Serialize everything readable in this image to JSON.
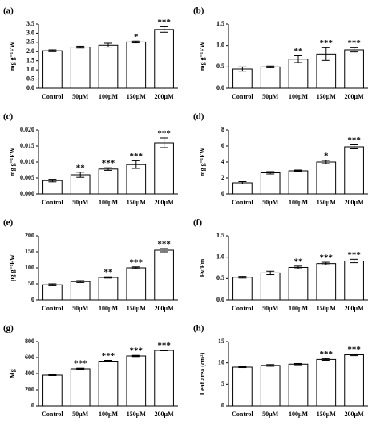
{
  "chart_data": [
    {
      "type": "bar",
      "panel": "(a)",
      "ylabel": "mg g⁻¹FW",
      "categories": [
        "Control",
        "50μM",
        "100μM",
        "150μM",
        "200μM"
      ],
      "values": [
        2.05,
        2.25,
        2.35,
        2.52,
        3.2
      ],
      "errors": [
        0.05,
        0.05,
        0.1,
        0.05,
        0.15
      ],
      "annotations": [
        null,
        null,
        null,
        "*",
        "***"
      ],
      "color": "#ffffff",
      "ylim": [
        0,
        3.5
      ],
      "yticks": [
        {
          "value": 0,
          "label": "0.0"
        },
        {
          "value": 0.5,
          "label": "0.5"
        },
        {
          "value": 1,
          "label": "1.0"
        },
        {
          "value": 1.5,
          "label": "1.5"
        },
        {
          "value": 2,
          "label": "2.0"
        },
        {
          "value": 2.5,
          "label": "2.5"
        },
        {
          "value": 3,
          "label": "3.0"
        },
        {
          "value": 3.5,
          "label": "3.5"
        }
      ]
    },
    {
      "type": "bar",
      "panel": "(b)",
      "ylabel": "mg g⁻¹FW",
      "categories": [
        "Control",
        "50μM",
        "100μM",
        "150μM",
        "200μM"
      ],
      "values": [
        0.45,
        0.5,
        0.68,
        0.8,
        0.9
      ],
      "errors": [
        0.05,
        0.02,
        0.08,
        0.15,
        0.05
      ],
      "annotations": [
        null,
        null,
        "**",
        "***",
        "***"
      ],
      "color": "#ffffff",
      "ylim": [
        0,
        1.5
      ],
      "yticks": [
        {
          "value": 0,
          "label": "0.0"
        },
        {
          "value": 0.5,
          "label": "0.5"
        },
        {
          "value": 1,
          "label": "1.0"
        },
        {
          "value": 1.5,
          "label": "1.5"
        }
      ]
    },
    {
      "type": "bar",
      "panel": "(c)",
      "ylabel": "mg g⁻¹FW",
      "categories": [
        "Control",
        "50μM",
        "100μM",
        "150μM",
        "200μM"
      ],
      "values": [
        0.0042,
        0.006,
        0.0078,
        0.0092,
        0.016
      ],
      "errors": [
        0.0004,
        0.0008,
        0.0004,
        0.0012,
        0.0015
      ],
      "annotations": [
        null,
        "**",
        "***",
        "***",
        "***"
      ],
      "color": "#ffffff",
      "ylim": [
        0,
        0.02
      ],
      "yticks": [
        {
          "value": 0,
          "label": "0.000"
        },
        {
          "value": 0.005,
          "label": "0.005"
        },
        {
          "value": 0.01,
          "label": "0.010"
        },
        {
          "value": 0.015,
          "label": "0.015"
        },
        {
          "value": 0.02,
          "label": "0.020"
        }
      ]
    },
    {
      "type": "bar",
      "panel": "(d)",
      "ylabel": "mg g⁻¹FW",
      "categories": [
        "Control",
        "50μM",
        "100μM",
        "150μM",
        "200μM"
      ],
      "values": [
        1.4,
        2.65,
        2.9,
        4.0,
        5.9
      ],
      "errors": [
        0.15,
        0.15,
        0.1,
        0.2,
        0.25
      ],
      "annotations": [
        null,
        null,
        null,
        "*",
        "***"
      ],
      "color": "#ffffff",
      "ylim": [
        0,
        8
      ],
      "yticks": [
        0,
        2,
        4,
        6,
        8
      ]
    },
    {
      "type": "bar",
      "panel": "(e)",
      "ylabel": "μg g⁻¹FW",
      "categories": [
        "Control",
        "50μM",
        "100μM",
        "150μM",
        "200μM"
      ],
      "values": [
        47,
        57,
        70,
        100,
        155
      ],
      "errors": [
        3,
        3,
        2,
        3,
        5
      ],
      "annotations": [
        null,
        null,
        "**",
        "***",
        "***"
      ],
      "color": "#ffffff",
      "ylim": [
        0,
        200
      ],
      "yticks": [
        0,
        50,
        100,
        150,
        200
      ]
    },
    {
      "type": "bar",
      "panel": "(f)",
      "ylabel": "Fv/Fm",
      "categories": [
        "Control",
        "50μM",
        "100μM",
        "150μM",
        "200μM"
      ],
      "values": [
        0.53,
        0.63,
        0.76,
        0.85,
        0.91
      ],
      "errors": [
        0.02,
        0.04,
        0.03,
        0.03,
        0.04
      ],
      "annotations": [
        null,
        null,
        "**",
        "***",
        "***"
      ],
      "color": "#ffffff",
      "ylim": [
        0,
        1.5
      ],
      "yticks": [
        {
          "value": 0,
          "label": "0.0"
        },
        {
          "value": 0.5,
          "label": "0.5"
        },
        {
          "value": 1,
          "label": "1.0"
        },
        {
          "value": 1.5,
          "label": "1.5"
        }
      ]
    },
    {
      "type": "bar",
      "panel": "(g)",
      "ylabel": "Mg",
      "categories": [
        "Control",
        "50μM",
        "100μM",
        "150μM",
        "200μM"
      ],
      "values": [
        380,
        460,
        555,
        620,
        690
      ],
      "errors": [
        5,
        8,
        10,
        8,
        5
      ],
      "annotations": [
        null,
        "***",
        "***",
        "***",
        "***"
      ],
      "color": "#ffffff",
      "ylim": [
        0,
        800
      ],
      "yticks": [
        0,
        200,
        400,
        600,
        800
      ]
    },
    {
      "type": "bar",
      "panel": "(h)",
      "ylabel": "Leaf area (cm²)",
      "categories": [
        "Control",
        "50μM",
        "100μM",
        "150μM",
        "200μM"
      ],
      "values": [
        9.0,
        9.4,
        9.7,
        10.8,
        11.9
      ],
      "errors": [
        0.1,
        0.2,
        0.15,
        0.2,
        0.2
      ],
      "annotations": [
        null,
        null,
        null,
        "***",
        "***"
      ],
      "color": "#ffffff",
      "ylim": [
        0,
        15
      ],
      "yticks": [
        0,
        5,
        10,
        15
      ]
    }
  ]
}
